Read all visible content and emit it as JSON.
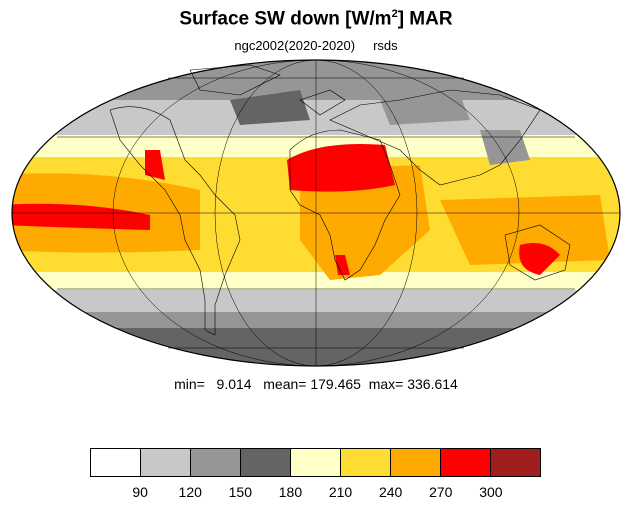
{
  "title": {
    "main": "Surface SW down [W/m",
    "sup": "2",
    "suffix": "]  MAR"
  },
  "subtitle": {
    "run": "ngc2002(2020-2020)",
    "variable": "rsds"
  },
  "stats": {
    "text": "min=   9.014   mean= 179.465  max= 336.614"
  },
  "colorbar": {
    "colors": [
      "#ffffff",
      "#c8c8c8",
      "#969696",
      "#646464",
      "#ffffc8",
      "#ffdc32",
      "#ffaa00",
      "#ff0000",
      "#a01e1e"
    ],
    "labels": [
      "90",
      "120",
      "150",
      "180",
      "210",
      "240",
      "270",
      "300"
    ]
  }
}
